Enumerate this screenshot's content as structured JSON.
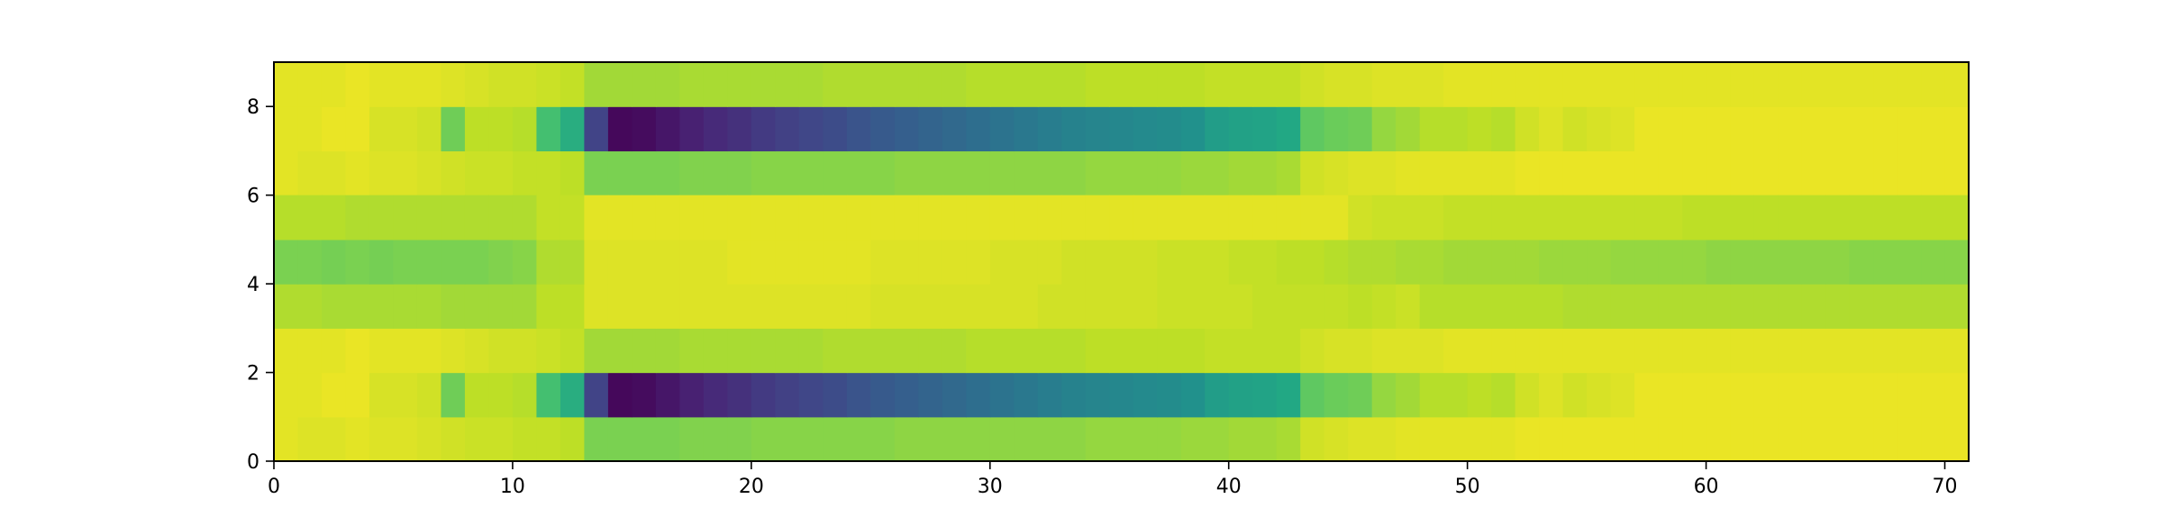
{
  "chart_data": {
    "type": "heatmap",
    "colormap": "viridis",
    "color_range": [
      0.0,
      1.0
    ],
    "xlim": [
      0,
      71
    ],
    "ylim": [
      0,
      9
    ],
    "xticks": [
      0,
      10,
      20,
      30,
      40,
      50,
      60,
      70
    ],
    "yticks": [
      0,
      2,
      4,
      6,
      8
    ],
    "xtick_labels": [
      "0",
      "10",
      "20",
      "30",
      "40",
      "50",
      "60",
      "70"
    ],
    "ytick_labels": [
      "0",
      "2",
      "4",
      "6",
      "8"
    ],
    "title": "",
    "xlabel": "",
    "ylabel": "",
    "grid": false,
    "legend": "none",
    "row_profiles": [
      {
        "rows": [
          0,
          6
        ],
        "desc": "light band",
        "values": [
          0.96,
          0.95,
          0.95,
          0.96,
          0.95,
          0.95,
          0.94,
          0.93,
          0.92,
          0.92,
          0.91,
          0.91,
          0.9,
          0.8,
          0.8,
          0.8,
          0.8,
          0.81,
          0.81,
          0.81,
          0.82,
          0.82,
          0.82,
          0.82,
          0.82,
          0.82,
          0.83,
          0.83,
          0.83,
          0.83,
          0.83,
          0.83,
          0.83,
          0.83,
          0.84,
          0.84,
          0.84,
          0.84,
          0.85,
          0.85,
          0.86,
          0.86,
          0.87,
          0.93,
          0.94,
          0.95,
          0.95,
          0.96,
          0.96,
          0.96,
          0.96,
          0.96,
          0.97,
          0.97,
          0.97,
          0.97,
          0.97,
          0.97,
          0.97,
          0.97,
          0.97,
          0.97,
          0.97,
          0.97,
          0.97,
          0.97,
          0.97,
          0.97,
          0.97,
          0.97,
          0.97
        ]
      },
      {
        "rows": [
          1,
          7
        ],
        "desc": "deep band",
        "values": [
          0.96,
          0.96,
          0.97,
          0.97,
          0.94,
          0.94,
          0.93,
          0.78,
          0.9,
          0.9,
          0.89,
          0.7,
          0.62,
          0.2,
          0.02,
          0.03,
          0.06,
          0.09,
          0.12,
          0.14,
          0.17,
          0.19,
          0.21,
          0.23,
          0.26,
          0.28,
          0.3,
          0.32,
          0.34,
          0.36,
          0.38,
          0.4,
          0.42,
          0.44,
          0.45,
          0.46,
          0.47,
          0.48,
          0.5,
          0.55,
          0.57,
          0.58,
          0.6,
          0.75,
          0.77,
          0.78,
          0.84,
          0.86,
          0.89,
          0.89,
          0.9,
          0.89,
          0.93,
          0.95,
          0.93,
          0.94,
          0.95,
          0.97,
          0.97,
          0.97,
          0.97,
          0.97,
          0.97,
          0.97,
          0.97,
          0.97,
          0.97,
          0.97,
          0.97,
          0.97,
          0.97
        ]
      },
      {
        "rows": [
          2
        ],
        "desc": "light band",
        "values": [
          0.96,
          0.96,
          0.96,
          0.97,
          0.96,
          0.96,
          0.96,
          0.95,
          0.94,
          0.93,
          0.93,
          0.92,
          0.91,
          0.86,
          0.86,
          0.86,
          0.86,
          0.87,
          0.87,
          0.87,
          0.87,
          0.87,
          0.87,
          0.88,
          0.88,
          0.88,
          0.88,
          0.88,
          0.88,
          0.89,
          0.89,
          0.89,
          0.89,
          0.89,
          0.9,
          0.9,
          0.9,
          0.9,
          0.9,
          0.91,
          0.91,
          0.91,
          0.91,
          0.93,
          0.94,
          0.94,
          0.95,
          0.95,
          0.95,
          0.96,
          0.96,
          0.96,
          0.96,
          0.96,
          0.96,
          0.96,
          0.96,
          0.96,
          0.96,
          0.96,
          0.96,
          0.96,
          0.96,
          0.96,
          0.96,
          0.96,
          0.96,
          0.96,
          0.96,
          0.96,
          0.96
        ]
      },
      {
        "rows": [
          3
        ],
        "desc": "mid band",
        "values": [
          0.88,
          0.88,
          0.87,
          0.87,
          0.87,
          0.87,
          0.87,
          0.86,
          0.86,
          0.86,
          0.86,
          0.9,
          0.9,
          0.95,
          0.95,
          0.95,
          0.95,
          0.95,
          0.95,
          0.95,
          0.95,
          0.95,
          0.95,
          0.95,
          0.95,
          0.94,
          0.94,
          0.94,
          0.94,
          0.94,
          0.94,
          0.94,
          0.93,
          0.93,
          0.93,
          0.93,
          0.93,
          0.92,
          0.92,
          0.92,
          0.92,
          0.91,
          0.91,
          0.91,
          0.91,
          0.9,
          0.91,
          0.92,
          0.89,
          0.89,
          0.89,
          0.89,
          0.89,
          0.89,
          0.88,
          0.88,
          0.88,
          0.88,
          0.88,
          0.88,
          0.88,
          0.88,
          0.88,
          0.88,
          0.88,
          0.88,
          0.88,
          0.88,
          0.88,
          0.88,
          0.88
        ]
      },
      {
        "rows": [
          4
        ],
        "desc": "center band",
        "values": [
          0.8,
          0.8,
          0.79,
          0.8,
          0.79,
          0.8,
          0.8,
          0.8,
          0.8,
          0.81,
          0.82,
          0.88,
          0.88,
          0.95,
          0.95,
          0.95,
          0.95,
          0.95,
          0.95,
          0.96,
          0.96,
          0.96,
          0.96,
          0.96,
          0.96,
          0.95,
          0.95,
          0.95,
          0.95,
          0.95,
          0.94,
          0.94,
          0.94,
          0.93,
          0.93,
          0.93,
          0.93,
          0.92,
          0.92,
          0.92,
          0.91,
          0.91,
          0.9,
          0.9,
          0.89,
          0.88,
          0.88,
          0.87,
          0.87,
          0.86,
          0.86,
          0.86,
          0.86,
          0.85,
          0.85,
          0.85,
          0.84,
          0.84,
          0.84,
          0.84,
          0.83,
          0.83,
          0.83,
          0.83,
          0.83,
          0.83,
          0.82,
          0.82,
          0.82,
          0.82,
          0.82
        ]
      },
      {
        "rows": [
          5
        ],
        "desc": "mid band",
        "values": [
          0.89,
          0.89,
          0.89,
          0.88,
          0.88,
          0.88,
          0.88,
          0.88,
          0.88,
          0.88,
          0.88,
          0.91,
          0.91,
          0.96,
          0.96,
          0.96,
          0.96,
          0.96,
          0.96,
          0.96,
          0.96,
          0.96,
          0.96,
          0.96,
          0.96,
          0.96,
          0.96,
          0.96,
          0.96,
          0.96,
          0.96,
          0.96,
          0.96,
          0.96,
          0.96,
          0.96,
          0.96,
          0.96,
          0.96,
          0.96,
          0.96,
          0.96,
          0.96,
          0.96,
          0.96,
          0.93,
          0.92,
          0.92,
          0.92,
          0.91,
          0.91,
          0.91,
          0.91,
          0.91,
          0.91,
          0.91,
          0.91,
          0.91,
          0.91,
          0.9,
          0.9,
          0.9,
          0.9,
          0.9,
          0.9,
          0.9,
          0.9,
          0.9,
          0.9,
          0.9,
          0.9
        ]
      },
      {
        "rows": [
          8
        ],
        "desc": "light band",
        "values": [
          0.96,
          0.96,
          0.96,
          0.97,
          0.96,
          0.96,
          0.96,
          0.95,
          0.94,
          0.93,
          0.93,
          0.92,
          0.91,
          0.86,
          0.86,
          0.86,
          0.86,
          0.87,
          0.87,
          0.87,
          0.87,
          0.87,
          0.87,
          0.88,
          0.88,
          0.88,
          0.88,
          0.88,
          0.88,
          0.89,
          0.89,
          0.89,
          0.89,
          0.89,
          0.9,
          0.9,
          0.9,
          0.9,
          0.9,
          0.91,
          0.91,
          0.91,
          0.91,
          0.93,
          0.94,
          0.94,
          0.95,
          0.95,
          0.95,
          0.96,
          0.96,
          0.96,
          0.96,
          0.96,
          0.96,
          0.96,
          0.96,
          0.96,
          0.96,
          0.96,
          0.96,
          0.96,
          0.96,
          0.96,
          0.96,
          0.96,
          0.96,
          0.96,
          0.96,
          0.96,
          0.96
        ]
      }
    ]
  }
}
